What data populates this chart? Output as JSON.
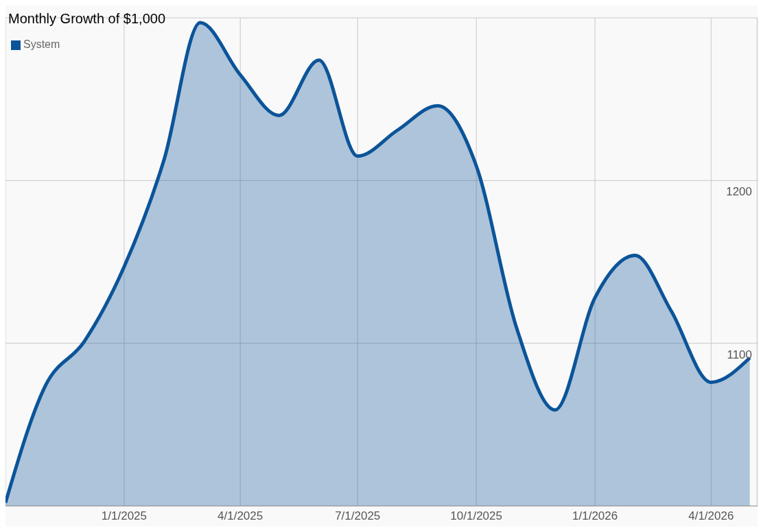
{
  "chart_data": {
    "type": "area",
    "title": "Monthly Growth of $1,000",
    "x": [
      "2024-10-01",
      "2024-11-01",
      "2024-12-01",
      "2025-01-01",
      "2025-02-01",
      "2025-03-01",
      "2025-04-01",
      "2025-05-01",
      "2025-06-01",
      "2025-07-01",
      "2025-08-01",
      "2025-09-01",
      "2025-10-01",
      "2025-11-01",
      "2025-12-01",
      "2026-01-01",
      "2026-02-01",
      "2026-03-01",
      "2026-04-01",
      "2026-05-01"
    ],
    "series": [
      {
        "name": "System",
        "color": "#0c5499",
        "values": [
          1002,
          1074,
          1101,
          1147,
          1213,
          1297,
          1265,
          1240,
          1274,
          1215,
          1231,
          1246,
          1209,
          1110,
          1059,
          1128,
          1154,
          1120,
          1076,
          1091
        ]
      }
    ],
    "xlim": [
      "2024-10-01",
      "2026-05-07"
    ],
    "xticks": [
      {
        "value": "2025-01-01",
        "label": "1/1/2025"
      },
      {
        "value": "2025-04-01",
        "label": "4/1/2025"
      },
      {
        "value": "2025-07-01",
        "label": "7/1/2025"
      },
      {
        "value": "2025-10-01",
        "label": "10/1/2025"
      },
      {
        "value": "2026-01-01",
        "label": "1/1/2026"
      },
      {
        "value": "2026-04-01",
        "label": "4/1/2026"
      }
    ],
    "ylim": [
      1000,
      1300
    ],
    "yticks": [
      1100,
      1200
    ],
    "grid": true,
    "legend": "top left",
    "line_style": "solid",
    "marker": "none"
  }
}
